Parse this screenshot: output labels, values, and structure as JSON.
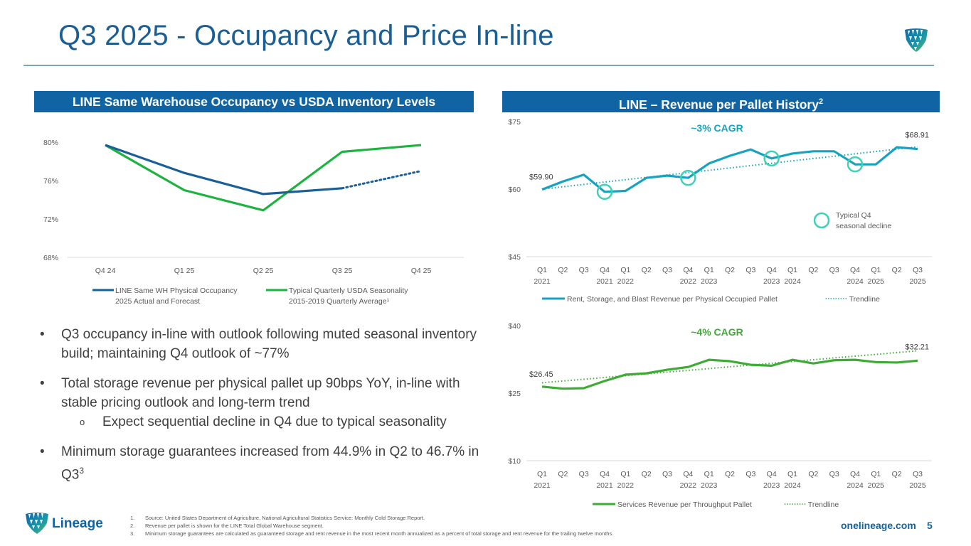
{
  "page": {
    "title": "Q3 2025 - Occupancy and Price In-line",
    "website": "onelineage.com",
    "page_number": "5",
    "brand_name": "Lineage"
  },
  "colors": {
    "title_blue": "#1b5e93",
    "banner_blue": "#1164a3",
    "occupancy_blue": "#1a5f98",
    "usda_green": "#1db341",
    "storage_teal": "#17a2bf",
    "q4_circle": "#3fd1b5",
    "services_green": "#3eab35"
  },
  "left_panel": {
    "banner": "LINE Same Warehouse Occupancy vs USDA Inventory Levels"
  },
  "right_panel": {
    "banner": "LINE – Revenue per Pallet History",
    "banner_sup": "2"
  },
  "bullets": [
    {
      "text": "Q3 occupancy in-line with outlook following muted seasonal inventory build; maintaining Q4 outlook of ~77%"
    },
    {
      "text": "Total storage revenue per physical pallet up 90bps YoY, in-line with stable pricing outlook and long-term trend",
      "sub": "Expect sequential decline in Q4 due to typical seasonality"
    },
    {
      "text": "Minimum storage guarantees increased from 44.9% in Q2 to 46.7% in Q3",
      "sup": "3"
    }
  ],
  "bullet_glyph": "•",
  "sub_bullet_glyph": "o",
  "footnotes": [
    {
      "num": "1.",
      "text": "Source: United States Department of Agriculture, National Agricultural Statistics Service: Monthly Cold Storage Report."
    },
    {
      "num": "2.",
      "text": "Revenue per pallet is shown for the LINE Total Global Warehouse segment."
    },
    {
      "num": "3.",
      "text": "Minimum storage guarantees are calculated as guaranteed storage and rent revenue in the most recent month annualized as a percent of total storage and rent revenue for the trailing twelve months."
    }
  ],
  "chart_data": [
    {
      "id": "occupancy",
      "type": "line",
      "title": "LINE Same Warehouse Occupancy vs USDA Inventory Levels",
      "categories": [
        "Q4 24",
        "Q1 25",
        "Q2 25",
        "Q3 25",
        "Q4 25"
      ],
      "y_ticks": [
        "68%",
        "72%",
        "76%",
        "80%"
      ],
      "ylim": [
        68,
        80
      ],
      "grid": false,
      "legend_position": "bottom",
      "series": [
        {
          "name": "LINE Same WH Physical Occupancy",
          "name_line2": "2025 Actual and Forecast",
          "values": [
            79.7,
            76.8,
            74.6,
            75.2,
            77.0
          ],
          "dotted_from_index": 3,
          "color_key": "occupancy_blue"
        },
        {
          "name": "Typical Quarterly USDA Seasonality",
          "name_line2": "2015-2019 Quarterly Average¹",
          "values": [
            79.7,
            75.0,
            72.9,
            79.0,
            79.7
          ],
          "color_key": "usda_green"
        }
      ]
    },
    {
      "id": "storage_rev",
      "type": "line",
      "title": "Rent, Storage, and Blast Revenue per Physical Occupied Pallet",
      "annotation": "~3% CAGR",
      "categories": [
        "Q1 2021",
        "Q2",
        "Q3",
        "Q4 2021",
        "Q1 2022",
        "Q2",
        "Q3",
        "Q4 2022",
        "Q1 2023",
        "Q2",
        "Q3",
        "Q4 2023",
        "Q1 2024",
        "Q2",
        "Q3",
        "Q4 2024",
        "Q1 2025",
        "Q2",
        "Q3 2025"
      ],
      "x_tick_line1": [
        "Q1",
        "Q2",
        "Q3",
        "Q4",
        "Q1",
        "Q2",
        "Q3",
        "Q4",
        "Q1",
        "Q2",
        "Q3",
        "Q4",
        "Q1",
        "Q2",
        "Q3",
        "Q4",
        "Q1",
        "Q2",
        "Q3"
      ],
      "x_tick_line2": [
        "2021",
        "",
        "",
        "2021",
        "2022",
        "",
        "",
        "2022",
        "2023",
        "",
        "",
        "2023",
        "2024",
        "",
        "",
        "2024",
        "2025",
        "",
        "2025"
      ],
      "y_ticks": [
        "$45",
        "$60",
        "$75"
      ],
      "ylim": [
        45,
        75
      ],
      "grid": false,
      "legend_position": "bottom",
      "series": [
        {
          "name": "Rent, Storage, and Blast Revenue per Physical Occupied Pallet",
          "values": [
            59.9,
            61.7,
            63.2,
            59.4,
            59.6,
            62.5,
            63.0,
            62.5,
            65.7,
            67.4,
            68.8,
            66.8,
            67.9,
            68.4,
            68.4,
            65.5,
            65.5,
            69.3,
            68.91
          ]
        },
        {
          "name": "Trendline",
          "style": "dotted",
          "start": 60.0,
          "end": 69.4
        }
      ],
      "data_labels": [
        {
          "index": 0,
          "text": "$59.90"
        },
        {
          "index": 18,
          "text": "$68.91"
        }
      ],
      "highlight_indices": [
        3,
        7,
        11,
        15
      ],
      "highlight_legend": "Typical Q4 seasonal decline",
      "highlight_legend_line1": "Typical Q4",
      "highlight_legend_line2": "seasonal decline"
    },
    {
      "id": "services_rev",
      "type": "line",
      "title": "Services Revenue per Throughput Pallet",
      "annotation": "~4% CAGR",
      "categories": [
        "Q1 2021",
        "Q2",
        "Q3",
        "Q4 2021",
        "Q1 2022",
        "Q2",
        "Q3",
        "Q4 2022",
        "Q1 2023",
        "Q2",
        "Q3",
        "Q4 2023",
        "Q1 2024",
        "Q2",
        "Q3",
        "Q4 2024",
        "Q1 2025",
        "Q2",
        "Q3 2025"
      ],
      "x_tick_line1": [
        "Q1",
        "Q2",
        "Q3",
        "Q4",
        "Q1",
        "Q2",
        "Q3",
        "Q4",
        "Q1",
        "Q2",
        "Q3",
        "Q4",
        "Q1",
        "Q2",
        "Q3",
        "Q4",
        "Q1",
        "Q2",
        "Q3"
      ],
      "x_tick_line2": [
        "2021",
        "",
        "",
        "2021",
        "2022",
        "",
        "",
        "2022",
        "2023",
        "",
        "",
        "2023",
        "2024",
        "",
        "",
        "2024",
        "2025",
        "",
        "2025"
      ],
      "y_ticks": [
        "$10",
        "$25",
        "$40"
      ],
      "ylim": [
        10,
        40
      ],
      "grid": false,
      "legend_position": "bottom",
      "series": [
        {
          "name": "Services Revenue per Throughput Pallet",
          "values": [
            26.45,
            26.0,
            26.1,
            27.7,
            29.1,
            29.4,
            30.2,
            30.8,
            32.4,
            32.1,
            31.3,
            31.1,
            32.4,
            31.6,
            32.3,
            32.4,
            31.9,
            31.8,
            32.21
          ]
        },
        {
          "name": "Trendline",
          "style": "dotted",
          "start": 27.3,
          "end": 34.4
        }
      ],
      "data_labels": [
        {
          "index": 0,
          "text": "$26.45"
        },
        {
          "index": 18,
          "text": "$32.21"
        }
      ]
    }
  ]
}
